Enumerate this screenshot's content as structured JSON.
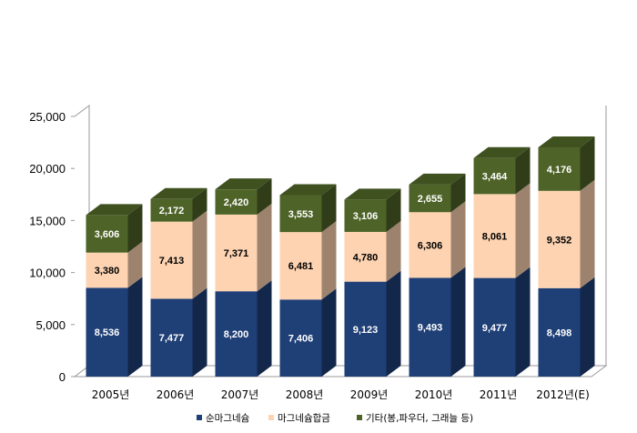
{
  "chart_data": {
    "type": "bar",
    "stacked": true,
    "style": "3d",
    "categories": [
      "2005년",
      "2006년",
      "2007년",
      "2008년",
      "2009년",
      "2010년",
      "2011년",
      "2012년(E)"
    ],
    "series": [
      {
        "name": "순마그네슘",
        "color": "#1f3f77",
        "values": [
          8536,
          7477,
          8200,
          7406,
          9123,
          9493,
          9477,
          8498
        ]
      },
      {
        "name": "마그네슘합금",
        "color": "#fdd3b1",
        "values": [
          3380,
          7413,
          7371,
          6481,
          4780,
          6306,
          8061,
          9352
        ]
      },
      {
        "name": "기타(봉,파우더, 그래늘 등)",
        "color": "#4e6327",
        "values": [
          3606,
          2172,
          2420,
          3553,
          3106,
          2655,
          3464,
          4176
        ]
      }
    ],
    "data_labels": [
      [
        "8,536",
        "7,477",
        "8,200",
        "7,406",
        "9,123",
        "9,493",
        "9,477",
        "8,498"
      ],
      [
        "3,380",
        "7,413",
        "7,371",
        "6,481",
        "4,780",
        "6,306",
        "8,061",
        "9,352"
      ],
      [
        "3,606",
        "2,172",
        "2,420",
        "3,553",
        "3,106",
        "2,655",
        "3,464",
        "4,176"
      ]
    ],
    "y_ticks": [
      0,
      5000,
      10000,
      15000,
      20000,
      25000
    ],
    "y_tick_labels": [
      "0",
      "5,000",
      "10,000",
      "15,000",
      "20,000",
      "25,000"
    ],
    "ylim": [
      0,
      25000
    ],
    "grid": false,
    "legend_position": "bottom"
  }
}
